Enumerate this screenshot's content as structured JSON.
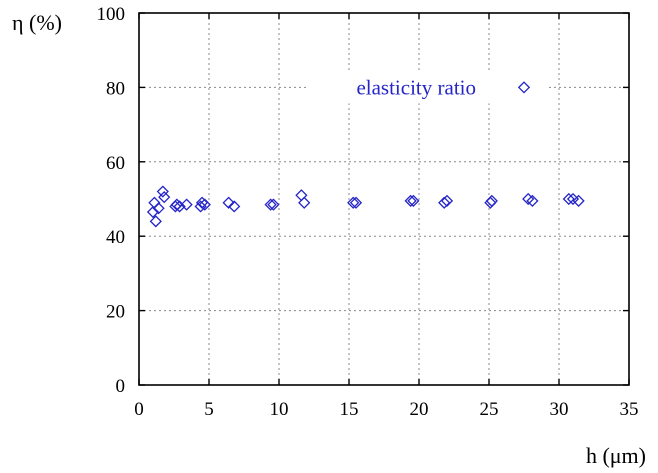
{
  "chart_data": {
    "type": "scatter",
    "xlabel": "h (μm)",
    "ylabel": "η (%)",
    "xlim": [
      0,
      35
    ],
    "ylim": [
      0,
      100
    ],
    "xticks": [
      0,
      5,
      10,
      15,
      20,
      25,
      30,
      35
    ],
    "yticks": [
      0,
      20,
      40,
      60,
      80,
      100
    ],
    "grid": true,
    "legend_position": "top-right",
    "marker_color": "#2525c8",
    "marker": "diamond",
    "series": [
      {
        "name": "elasticity ratio",
        "x": [
          1.0,
          1.1,
          1.2,
          1.4,
          1.7,
          1.8,
          2.6,
          2.7,
          2.9,
          3.4,
          4.4,
          4.5,
          4.7,
          6.4,
          6.8,
          9.4,
          9.6,
          11.6,
          11.8,
          15.3,
          15.5,
          19.4,
          19.6,
          21.8,
          22.0,
          25.1,
          25.2,
          27.8,
          28.1,
          30.7,
          31.0,
          31.4
        ],
        "y": [
          46.5,
          49.0,
          44.0,
          47.5,
          52.0,
          50.5,
          48.0,
          48.5,
          48.0,
          48.5,
          48.0,
          49.0,
          48.5,
          49.0,
          48.0,
          48.5,
          48.5,
          51.0,
          49.0,
          49.0,
          49.0,
          49.5,
          49.5,
          49.0,
          49.5,
          49.0,
          49.5,
          50.0,
          49.5,
          50.0,
          50.0,
          49.5
        ]
      }
    ],
    "legend_marker_x": 27.5,
    "legend_marker_y": 80
  }
}
